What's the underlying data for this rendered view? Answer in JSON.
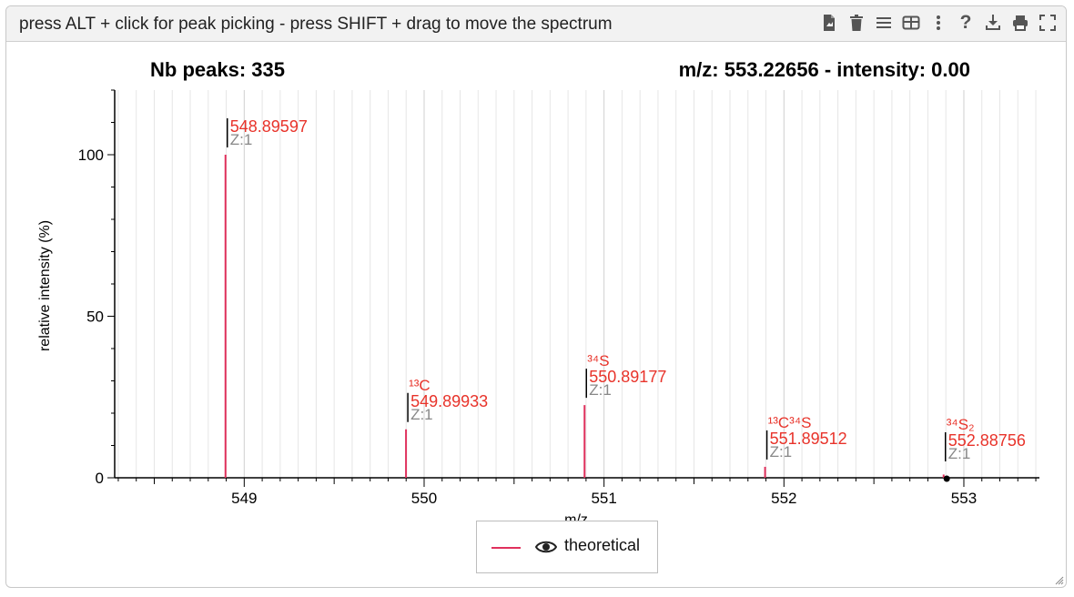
{
  "header": {
    "hint": "press ALT + click for peak picking - press SHIFT + drag to move the spectrum",
    "toolbar": [
      {
        "name": "export-icon"
      },
      {
        "name": "trash-icon"
      },
      {
        "name": "menu-icon"
      },
      {
        "name": "table-icon"
      },
      {
        "name": "more-vertical-icon"
      },
      {
        "name": "help-icon",
        "label": "?"
      },
      {
        "name": "download-icon"
      },
      {
        "name": "print-icon"
      },
      {
        "name": "fullscreen-icon"
      }
    ]
  },
  "status": {
    "peaks_text": "Nb peaks: 335",
    "cursor_text": "m/z: 553.22656 - intensity: 0.00"
  },
  "colors": {
    "series": "#e0315d",
    "peak_label": "#e8332a",
    "z_label": "#888888"
  },
  "chart_data": {
    "type": "bar",
    "xlabel": "m/z",
    "ylabel": "relative intensity (%)",
    "xlim": [
      548.28,
      553.42
    ],
    "ylim": [
      0,
      120
    ],
    "x_ticks": [
      549,
      550,
      551,
      552,
      553
    ],
    "y_ticks": [
      0,
      50,
      100
    ],
    "series": [
      {
        "name": "theoretical",
        "peaks": [
          {
            "x": 548.89597,
            "y": 100,
            "label": "548.89597",
            "isotope": "",
            "z": "Z:1"
          },
          {
            "x": 549.89933,
            "y": 15,
            "label": "549.89933",
            "isotope": "¹³C",
            "z": "Z:1"
          },
          {
            "x": 550.89177,
            "y": 22.5,
            "label": "550.89177",
            "isotope": "³⁴S",
            "z": "Z:1"
          },
          {
            "x": 551.89512,
            "y": 3.4,
            "label": "551.89512",
            "isotope": "¹³C³⁴S",
            "z": "Z:1"
          },
          {
            "x": 552.88756,
            "y": 1.0,
            "label": "552.88756",
            "isotope": "³⁴S₂",
            "z": "Z:1"
          }
        ]
      }
    ],
    "legend": {
      "label": "theoretical",
      "position": "bottom-center"
    }
  }
}
